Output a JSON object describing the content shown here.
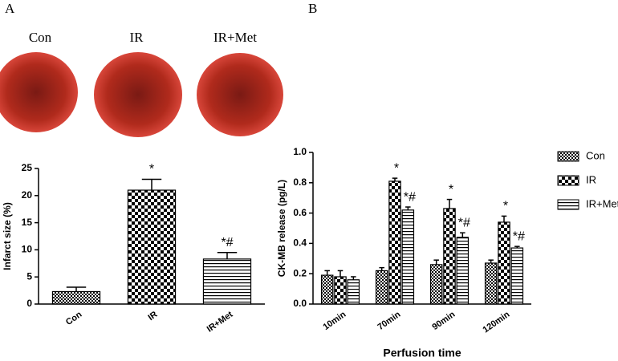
{
  "panel_labels": [
    "A",
    "B"
  ],
  "photo_labels": [
    "Con",
    "IR",
    "IR+Met"
  ],
  "chart_data": [
    {
      "type": "bar",
      "ylabel": "Infarct size (%)",
      "categories": [
        "Con",
        "IR",
        "IR+Met"
      ],
      "values": [
        2.3,
        21,
        8.3
      ],
      "errors": [
        0.8,
        2,
        1.2
      ],
      "annotations": [
        null,
        "*",
        "*#"
      ],
      "color": "#000000",
      "ylim": [
        0,
        25
      ],
      "yticks": [
        0,
        5,
        10,
        15,
        20,
        25
      ]
    },
    {
      "type": "bar",
      "ylabel": "CK-MB release (pg/L)",
      "xlabel": "Perfusion time",
      "categories": [
        "10min",
        "70min",
        "90min",
        "120min"
      ],
      "series": [
        {
          "name": "Con",
          "color": "#000000",
          "values": [
            0.19,
            0.22,
            0.26,
            0.27
          ],
          "errors": [
            0.03,
            0.02,
            0.03,
            0.02
          ],
          "annotations": [
            null,
            null,
            null,
            null
          ]
        },
        {
          "name": "IR",
          "color": "#000000",
          "values": [
            0.18,
            0.81,
            0.63,
            0.54
          ],
          "errors": [
            0.04,
            0.02,
            0.06,
            0.04
          ],
          "annotations": [
            null,
            "*",
            "*",
            "*"
          ]
        },
        {
          "name": "IR+Met",
          "color": "#000000",
          "values": [
            0.16,
            0.62,
            0.44,
            0.37
          ],
          "errors": [
            0.02,
            0.02,
            0.03,
            0.01
          ],
          "annotations": [
            null,
            "*#",
            "*#",
            "*#"
          ]
        }
      ],
      "ylim": [
        0,
        1
      ],
      "yticks": [
        {
          "value": 0,
          "label": "0.0"
        },
        0.2,
        0.4,
        0.6,
        0.8,
        {
          "value": 1,
          "label": "1.0"
        }
      ],
      "legend": "right"
    }
  ]
}
